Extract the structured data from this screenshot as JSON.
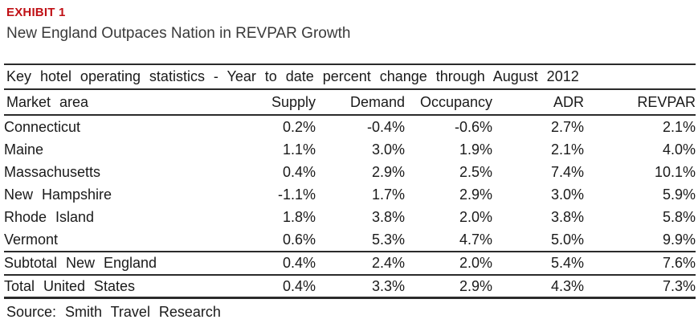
{
  "exhibit": {
    "label": "EXHIBIT 1",
    "title": "New England Outpaces Nation in REVPAR Growth"
  },
  "table": {
    "caption": "Key hotel operating statistics - Year to date percent change through August 2012",
    "columns": [
      "Market area",
      "Supply",
      "Demand",
      "Occupancy",
      "ADR",
      "REVPAR"
    ],
    "rows": [
      [
        "Connecticut",
        "0.2%",
        "-0.4%",
        "-0.6%",
        "2.7%",
        "2.1%"
      ],
      [
        "Maine",
        "1.1%",
        "3.0%",
        "1.9%",
        "2.1%",
        "4.0%"
      ],
      [
        "Massachusetts",
        "0.4%",
        "2.9%",
        "2.5%",
        "7.4%",
        "10.1%"
      ],
      [
        "New Hampshire",
        "-1.1%",
        "1.7%",
        "2.9%",
        "3.0%",
        "5.9%"
      ],
      [
        "Rhode Island",
        "1.8%",
        "3.8%",
        "2.0%",
        "3.8%",
        "5.8%"
      ],
      [
        "Vermont",
        "0.6%",
        "5.3%",
        "4.7%",
        "5.0%",
        "9.9%"
      ]
    ],
    "subtotal": [
      "Subtotal New England",
      "0.4%",
      "2.4%",
      "2.0%",
      "5.4%",
      "7.6%"
    ],
    "total": [
      "Total United States",
      "0.4%",
      "3.3%",
      "2.9%",
      "4.3%",
      "7.3%"
    ]
  },
  "source": "Source: Smith Travel Research",
  "colors": {
    "accent_red": "#c01015",
    "rule_line": "#2b2b2b",
    "body_text": "#1a1a1a",
    "subtitle_text": "#3a3a3a",
    "background": "#ffffff"
  }
}
